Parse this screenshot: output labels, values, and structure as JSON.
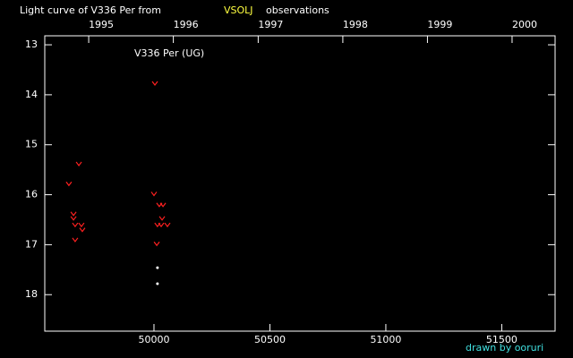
{
  "chart_data": {
    "type": "scatter",
    "title": "Light curve of V336 Per from",
    "title_source": "VSOLJ",
    "title_suffix": "observations",
    "annotation": "V336 Per (UG)",
    "credit": "drawn by ooruri",
    "xlim": [
      49529,
      51730
    ],
    "ylim": [
      12.82,
      18.73
    ],
    "y_inverted": true,
    "xticks": [
      50000,
      50500,
      51000,
      51500
    ],
    "yticks": [
      13,
      14,
      15,
      16,
      17,
      18
    ],
    "x2ticks": [
      {
        "value": 49718.5,
        "label": "1995"
      },
      {
        "value": 50083.5,
        "label": "1996"
      },
      {
        "value": 50449.5,
        "label": "1997"
      },
      {
        "value": 50814.5,
        "label": "1998"
      },
      {
        "value": 51179.5,
        "label": "1999"
      },
      {
        "value": 51544.5,
        "label": "2000"
      }
    ],
    "series": [
      {
        "color": "#ff2020",
        "marker": "v",
        "x": [
          49633,
          49676,
          49653,
          49653,
          49660,
          49687,
          49691,
          49660,
          50004,
          50000,
          50023,
          50039,
          50035,
          50015,
          50031,
          50058,
          50012
        ],
        "values": [
          15.78,
          15.38,
          16.38,
          16.47,
          16.6,
          16.6,
          16.7,
          16.9,
          13.77,
          15.98,
          16.2,
          16.2,
          16.47,
          16.6,
          16.6,
          16.6,
          16.98
        ]
      },
      {
        "color": "#ffffff",
        "marker": "dot",
        "x": [
          50015,
          50015
        ],
        "values": [
          17.46,
          17.78
        ]
      }
    ]
  }
}
